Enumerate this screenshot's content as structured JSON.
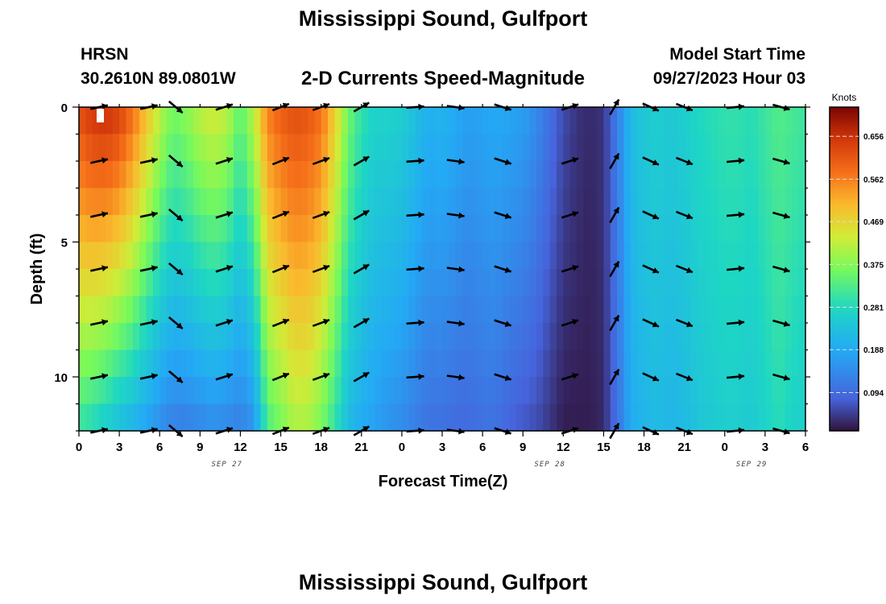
{
  "header": {
    "title": "Mississippi Sound, Gulfport",
    "station": "HRSN",
    "coords": "30.2610N  89.0801W",
    "subtitle": "2-D Currents Speed-Magnitude",
    "model_label": "Model Start Time",
    "model_time": "09/27/2023 Hour 03"
  },
  "footer": {
    "repeat_title": "Mississippi Sound, Gulfport"
  },
  "chart_data": {
    "type": "heatmap",
    "title": "2-D Currents Speed-Magnitude",
    "xlabel": "Forecast Time(Z)",
    "ylabel": "Depth (ft)",
    "units": "Knots",
    "x_range_hours": [
      0,
      54
    ],
    "y_range_ft": [
      0,
      12
    ],
    "x_ticks": [
      "0",
      "3",
      "6",
      "9",
      "12",
      "15",
      "18",
      "21",
      "0",
      "3",
      "6",
      "9",
      "12",
      "15",
      "18",
      "21",
      "0",
      "3",
      "6"
    ],
    "x_tick_hours": [
      0,
      3,
      6,
      9,
      12,
      15,
      18,
      21,
      24,
      27,
      30,
      33,
      36,
      39,
      42,
      45,
      48,
      51,
      54
    ],
    "y_ticks": [
      "0",
      "5",
      "10"
    ],
    "y_tick_values": [
      0,
      5,
      10
    ],
    "date_labels": [
      {
        "text": "SEP 27",
        "hour": 11
      },
      {
        "text": "SEP 28",
        "hour": 35
      },
      {
        "text": "SEP 29",
        "hour": 50
      }
    ],
    "colorbar_ticks": [
      "0.656",
      "0.562",
      "0.469",
      "0.375",
      "0.281",
      "0.188",
      "0.094"
    ],
    "colorbar_values": [
      0.656,
      0.562,
      0.469,
      0.375,
      0.281,
      0.188,
      0.094
    ],
    "colorbar_range": [
      0.01,
      0.72
    ],
    "speed_time_hours": [
      0,
      1,
      2,
      3,
      4,
      5,
      6,
      7,
      8,
      9,
      10,
      11,
      12,
      13,
      14,
      15,
      16,
      17,
      18,
      19,
      20,
      21,
      22,
      23,
      24,
      25,
      26,
      27,
      28,
      29,
      30,
      31,
      32,
      33,
      34,
      35,
      36,
      37,
      38,
      39,
      40,
      41,
      42,
      43,
      44,
      45,
      46,
      47,
      48,
      49,
      50,
      51,
      52,
      53,
      54
    ],
    "speed_surface": [
      0.62,
      0.65,
      0.66,
      0.64,
      0.58,
      0.5,
      0.42,
      0.36,
      0.38,
      0.42,
      0.44,
      0.42,
      0.34,
      0.42,
      0.56,
      0.6,
      0.62,
      0.61,
      0.58,
      0.48,
      0.36,
      0.3,
      0.27,
      0.27,
      0.26,
      0.23,
      0.2,
      0.21,
      0.19,
      0.17,
      0.18,
      0.19,
      0.18,
      0.17,
      0.14,
      0.1,
      0.06,
      0.04,
      0.03,
      0.04,
      0.12,
      0.22,
      0.25,
      0.26,
      0.25,
      0.26,
      0.28,
      0.29,
      0.3,
      0.3,
      0.29,
      0.31,
      0.33,
      0.32,
      0.31
    ],
    "speed_bottom": [
      0.3,
      0.28,
      0.25,
      0.22,
      0.2,
      0.17,
      0.14,
      0.12,
      0.12,
      0.13,
      0.14,
      0.13,
      0.12,
      0.15,
      0.32,
      0.36,
      0.4,
      0.4,
      0.36,
      0.3,
      0.22,
      0.19,
      0.17,
      0.15,
      0.14,
      0.12,
      0.1,
      0.1,
      0.09,
      0.09,
      0.1,
      0.1,
      0.08,
      0.07,
      0.06,
      0.04,
      0.02,
      0.02,
      0.02,
      0.03,
      0.1,
      0.19,
      0.21,
      0.22,
      0.21,
      0.22,
      0.24,
      0.25,
      0.26,
      0.26,
      0.25,
      0.27,
      0.29,
      0.27,
      0.26
    ],
    "vector_depths_ft": [
      0,
      2,
      4,
      6,
      8,
      10,
      12
    ],
    "vectors": [
      {
        "t": 1.5,
        "dir": 12
      },
      {
        "t": 5.2,
        "dir": 12
      },
      {
        "t": 7.2,
        "dir": -40
      },
      {
        "t": 10.8,
        "dir": 18
      },
      {
        "t": 15.0,
        "dir": 22
      },
      {
        "t": 18.0,
        "dir": 20
      },
      {
        "t": 21.0,
        "dir": 30
      },
      {
        "t": 25.0,
        "dir": 4
      },
      {
        "t": 28.0,
        "dir": -8
      },
      {
        "t": 31.5,
        "dir": -18
      },
      {
        "t": 36.5,
        "dir": 18
      },
      {
        "t": 39.8,
        "dir": 60
      },
      {
        "t": 42.5,
        "dir": -25
      },
      {
        "t": 45.0,
        "dir": -22
      },
      {
        "t": 48.8,
        "dir": 6
      },
      {
        "t": 52.2,
        "dir": -16
      }
    ]
  }
}
